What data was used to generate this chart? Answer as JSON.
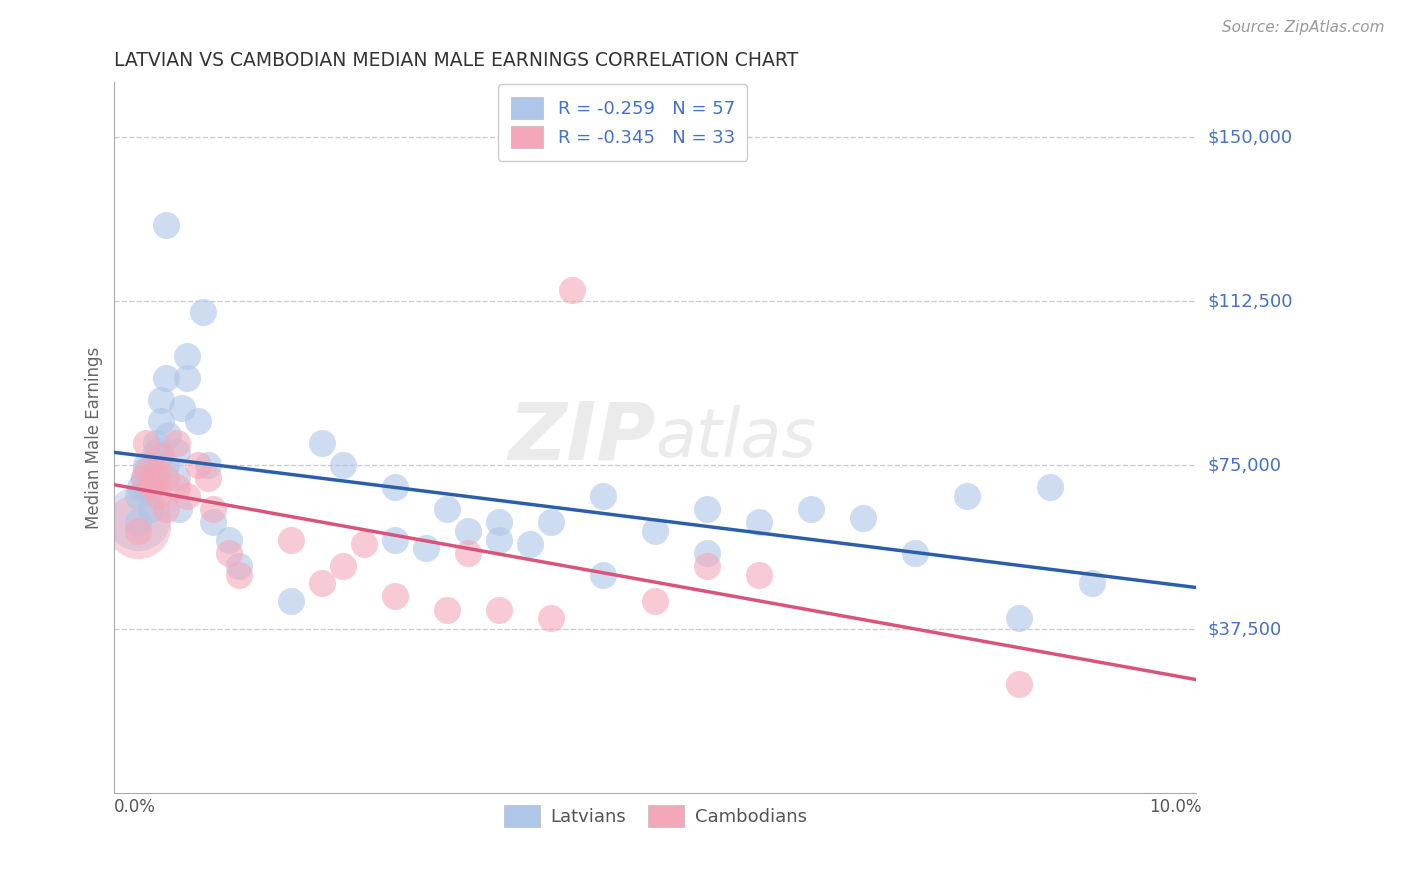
{
  "title": "LATVIAN VS CAMBODIAN MEDIAN MALE EARNINGS CORRELATION CHART",
  "source": "Source: ZipAtlas.com",
  "ylabel": "Median Male Earnings",
  "ytick_labels": [
    "$37,500",
    "$75,000",
    "$112,500",
    "$150,000"
  ],
  "ytick_values": [
    37500,
    75000,
    112500,
    150000
  ],
  "ymin": 0,
  "ymax": 162500,
  "xmin": -0.002,
  "xmax": 0.102,
  "watermark_zip": "ZIP",
  "watermark_atlas": "atlas",
  "legend_latvian_R": "-0.259",
  "legend_latvian_N": "57",
  "legend_cambodian_R": "-0.345",
  "legend_cambodian_N": "33",
  "latvian_color": "#aec6e8",
  "cambodian_color": "#f4a7b9",
  "latvian_line_color": "#2b5fa8",
  "cambodian_line_color": "#d9547a",
  "latvian_x": [
    0.0003,
    0.0003,
    0.0005,
    0.0008,
    0.001,
    0.001,
    0.0012,
    0.0015,
    0.0015,
    0.0018,
    0.002,
    0.002,
    0.002,
    0.0022,
    0.0025,
    0.0025,
    0.003,
    0.003,
    0.003,
    0.0032,
    0.004,
    0.004,
    0.0042,
    0.0045,
    0.005,
    0.005,
    0.006,
    0.0065,
    0.007,
    0.0075,
    0.009,
    0.01,
    0.015,
    0.018,
    0.02,
    0.025,
    0.03,
    0.032,
    0.035,
    0.04,
    0.045,
    0.05,
    0.055,
    0.06,
    0.065,
    0.07,
    0.075,
    0.08,
    0.085,
    0.088,
    0.092,
    0.045,
    0.055,
    0.025,
    0.035,
    0.028,
    0.038
  ],
  "latvian_y": [
    62000,
    68000,
    70000,
    72000,
    75000,
    74000,
    69000,
    71000,
    65000,
    73000,
    78000,
    80000,
    76000,
    72000,
    85000,
    90000,
    95000,
    130000,
    75000,
    82000,
    78000,
    72000,
    65000,
    88000,
    95000,
    100000,
    85000,
    110000,
    75000,
    62000,
    58000,
    52000,
    44000,
    80000,
    75000,
    70000,
    65000,
    60000,
    58000,
    62000,
    50000,
    60000,
    65000,
    62000,
    65000,
    63000,
    55000,
    68000,
    40000,
    70000,
    48000,
    68000,
    55000,
    58000,
    62000,
    56000,
    57000
  ],
  "cambodian_x": [
    0.0003,
    0.0008,
    0.001,
    0.0012,
    0.0015,
    0.0018,
    0.002,
    0.0022,
    0.0025,
    0.003,
    0.003,
    0.004,
    0.004,
    0.005,
    0.006,
    0.007,
    0.0075,
    0.009,
    0.01,
    0.015,
    0.018,
    0.02,
    0.025,
    0.03,
    0.035,
    0.04,
    0.05,
    0.055,
    0.06,
    0.085,
    0.032,
    0.042,
    0.022
  ],
  "cambodian_y": [
    60000,
    72000,
    80000,
    74000,
    70000,
    71000,
    73000,
    68000,
    77000,
    65000,
    72000,
    80000,
    70000,
    68000,
    75000,
    72000,
    65000,
    55000,
    50000,
    58000,
    48000,
    52000,
    45000,
    42000,
    42000,
    40000,
    44000,
    52000,
    50000,
    25000,
    55000,
    115000,
    57000
  ],
  "background_color": "#ffffff",
  "grid_color": "#cccccc",
  "title_color": "#333333"
}
